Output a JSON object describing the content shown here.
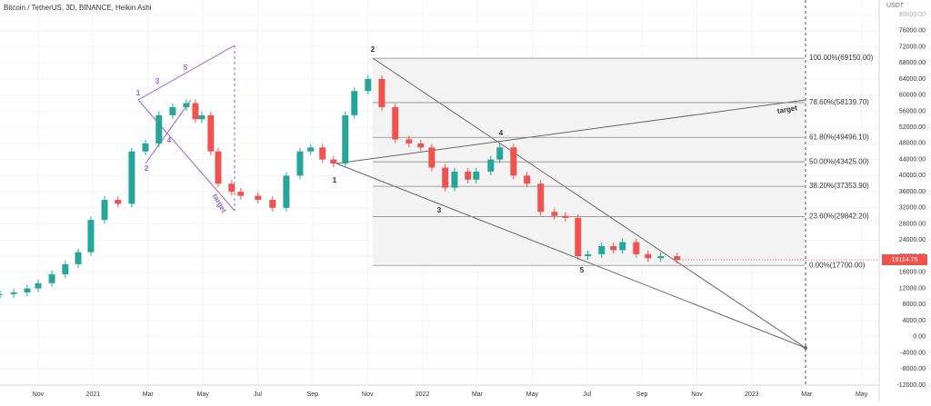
{
  "chart_data": {
    "type": "candlestick",
    "title": "Bitcoin / TetherUS, 3D, BINANCE, Heikin Ashi",
    "y_axis_label": "USDT",
    "x": [
      -1.39,
      -0.89,
      -0.4,
      0,
      0.5,
      0.99,
      1.46,
      1.92,
      2.42,
      2.91,
      3.41,
      3.91,
      4.4,
      4.9,
      5.4,
      5.73,
      5.96,
      6.29,
      6.56,
      7.05,
      7.38,
      8.01,
      8.54,
      9.04,
      9.54,
      9.93,
      10.36,
      10.76,
      11.19,
      11.52,
      12.02,
      12.52,
      13.01,
      13.51,
      13.94,
      14.34,
      14.83,
      15.17,
      15.66,
      15.96,
      16.49,
      16.82,
      17.32,
      17.81,
      18.31,
      18.81,
      19.21,
      19.67,
      20.03,
      20.53,
      20.96,
      21.29,
      21.79,
      22.22,
      22.68,
      23.28
    ],
    "values": [
      10600,
      11000,
      12000,
      13300,
      15500,
      18000,
      21000,
      29000,
      34000,
      33000,
      46000,
      48000,
      55000,
      57000,
      58000,
      54000,
      55000,
      46000,
      38000,
      36000,
      35000,
      34000,
      32000,
      40000,
      46000,
      47000,
      44000,
      43000,
      55000,
      61000,
      64000,
      57000,
      49000,
      48000,
      47000,
      42000,
      37000,
      41000,
      39000,
      41000,
      44000,
      47000,
      40000,
      38000,
      31000,
      30000,
      29500,
      20000,
      20500,
      22500,
      21500,
      23500,
      20500,
      19500,
      20000,
      19114.75
    ],
    "last_price": {
      "value": 19114.75,
      "label": "19114.75"
    },
    "up_color": "#26a69a",
    "down_color": "#ef5350",
    "ylim": [
      -12000,
      83600
    ],
    "yticks": [
      {
        "value": 80000,
        "label": "80000.00"
      },
      {
        "value": 76000,
        "label": "76000.00"
      },
      {
        "value": 72000,
        "label": "72000.00"
      },
      {
        "value": 68000,
        "label": "68000.00"
      },
      {
        "value": 64000,
        "label": "64000.00"
      },
      {
        "value": 60000,
        "label": "60000.00"
      },
      {
        "value": 56000,
        "label": "56000.00"
      },
      {
        "value": 52000,
        "label": "52000.00"
      },
      {
        "value": 48000,
        "label": "48000.00"
      },
      {
        "value": 44000,
        "label": "44000.00"
      },
      {
        "value": 40000,
        "label": "40000.00"
      },
      {
        "value": 36000,
        "label": "36000.00"
      },
      {
        "value": 32000,
        "label": "32000.00"
      },
      {
        "value": 28000,
        "label": "28000.00"
      },
      {
        "value": 24000,
        "label": "24000.00"
      },
      {
        "value": 20000,
        "label": "20000.00"
      },
      {
        "value": 16000,
        "label": "16000.00"
      },
      {
        "value": 12000,
        "label": "12000.00"
      },
      {
        "value": 8000,
        "label": "8000.00"
      },
      {
        "value": 4000,
        "label": "4000.00"
      },
      {
        "value": 0,
        "label": "0.00"
      },
      {
        "value": -4000,
        "label": "-4000.00"
      },
      {
        "value": -8000,
        "label": "-8000.00"
      },
      {
        "value": -12000,
        "label": "-12000.00"
      }
    ],
    "xlim": [
      -1.39,
      30.64
    ],
    "xticks": [
      {
        "value": 0,
        "label": "Nov"
      },
      {
        "value": 2,
        "label": "2021"
      },
      {
        "value": 4,
        "label": "Mar"
      },
      {
        "value": 6,
        "label": "May"
      },
      {
        "value": 8,
        "label": "Jul"
      },
      {
        "value": 10,
        "label": "Sep"
      },
      {
        "value": 12,
        "label": "Nov"
      },
      {
        "value": 14,
        "label": "2022"
      },
      {
        "value": 16,
        "label": "Mar"
      },
      {
        "value": 18,
        "label": "May"
      },
      {
        "value": 20,
        "label": "Jul"
      },
      {
        "value": 22,
        "label": "Sep"
      },
      {
        "value": 24,
        "label": "Nov"
      },
      {
        "value": 26,
        "label": "2023"
      },
      {
        "value": 28,
        "label": "Mar"
      },
      {
        "value": 30,
        "label": "May"
      }
    ],
    "grid": true,
    "fib_levels": [
      {
        "value": 69150,
        "label": "100.00%(69150.00)"
      },
      {
        "value": 58139.7,
        "label": "78.60%(58139.70)"
      },
      {
        "value": 49496.1,
        "label": "61.80%(49496.10)"
      },
      {
        "value": 43425,
        "label": "50.00%(43425.00)"
      },
      {
        "value": 37353.9,
        "label": "38.20%(37353.90)"
      },
      {
        "value": 29842.2,
        "label": "23.60%(29842.20)"
      },
      {
        "value": 17700,
        "label": "0.00%(17700.00)"
      }
    ],
    "annotations": [
      "1",
      "3",
      "5",
      "2",
      "4",
      "target",
      "2",
      "1",
      "3",
      "4",
      "5",
      "target"
    ]
  }
}
